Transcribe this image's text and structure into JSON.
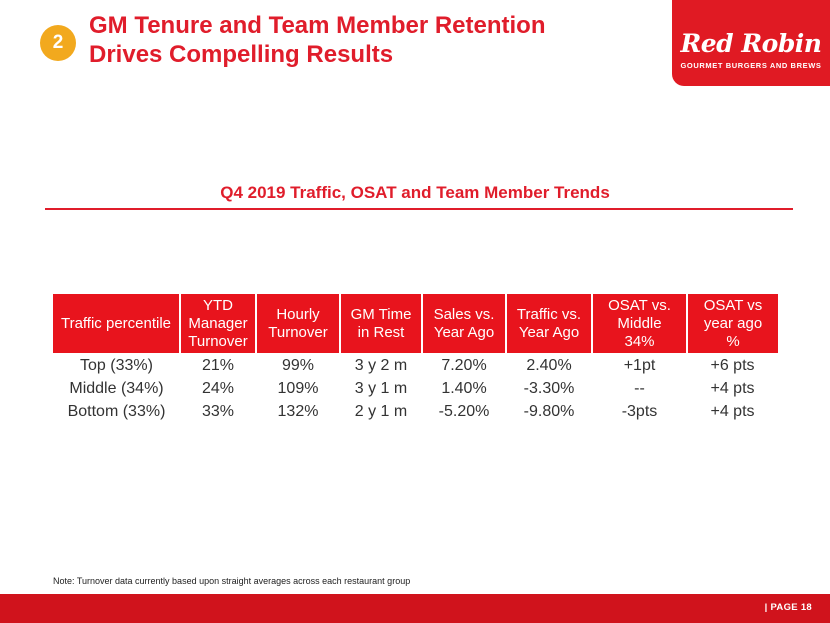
{
  "badge": "2",
  "title": [
    "GM Tenure and Team Member Retention",
    "Drives Compelling Results"
  ],
  "logo": {
    "main": "Red Robin",
    "sub": "GOURMET BURGERS AND BREWS"
  },
  "subtitle": "Q4 2019 Traffic, OSAT and Team Member Trends",
  "table": {
    "headers": [
      [
        "Traffic percentile"
      ],
      [
        "YTD",
        "Manager",
        "Turnover"
      ],
      [
        "Hourly",
        "Turnover"
      ],
      [
        "GM Time",
        "in Rest"
      ],
      [
        "Sales vs.",
        "Year Ago"
      ],
      [
        "Traffic vs.",
        "Year Ago"
      ],
      [
        "OSAT vs.",
        "Middle",
        "34%"
      ],
      [
        "OSAT vs",
        "year ago",
        "%"
      ]
    ],
    "rows": [
      [
        "Top (33%)",
        "21%",
        "99%",
        "3 y 2 m",
        "7.20%",
        "2.40%",
        "+1pt",
        "+6 pts"
      ],
      [
        "Middle (34%)",
        "24%",
        "109%",
        "3 y 1 m",
        "1.40%",
        "-3.30%",
        "--",
        "+4 pts"
      ],
      [
        "Bottom (33%)",
        "33%",
        "132%",
        "2 y 1 m",
        "-5.20%",
        "-9.80%",
        "-3pts",
        "+4 pts"
      ]
    ]
  },
  "note": "Note:  Turnover data currently based upon straight averages across each restaurant group",
  "page": "| PAGE 18"
}
